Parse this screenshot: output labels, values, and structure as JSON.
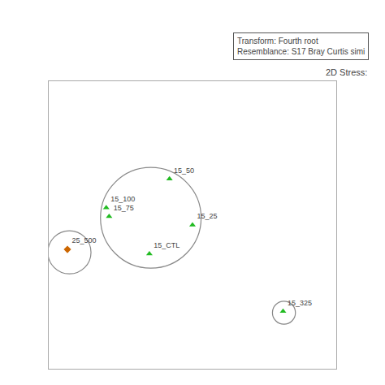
{
  "chart_data": {
    "type": "scatter",
    "annotations": [
      "Transform: Fourth root\nResemblance: S17 Bray Curtis simi",
      "2D Stress:"
    ],
    "series": [
      {
        "marker": "triangle-up",
        "color": "#22bb22",
        "x": [
          0.42,
          0.2,
          0.21,
          0.5,
          0.35
        ],
        "values": [
          0.66,
          0.56,
          0.53,
          0.5,
          0.4
        ],
        "labels": [
          "15_50",
          "15_100",
          "15_75",
          "15_25",
          "15_CTL"
        ]
      },
      {
        "marker": "diamond",
        "color": "#cc6600",
        "x": [
          0.065
        ],
        "values": [
          0.415
        ],
        "labels": [
          "25_500"
        ]
      },
      {
        "marker": "triangle-up",
        "color": "#22bb22",
        "x": [
          0.815
        ],
        "values": [
          0.2
        ],
        "labels": [
          "15_325"
        ]
      }
    ],
    "circles": [
      {
        "x": 0.355,
        "y": 0.525,
        "r": 0.175,
        "color": "#888888"
      },
      {
        "x": 0.072,
        "y": 0.405,
        "r": 0.075,
        "color": "#888888"
      },
      {
        "x": 0.818,
        "y": 0.195,
        "r": 0.04,
        "color": "#888888"
      }
    ],
    "xlim": [
      0,
      1
    ],
    "ylim": [
      0,
      1
    ],
    "tick_labels": false
  }
}
